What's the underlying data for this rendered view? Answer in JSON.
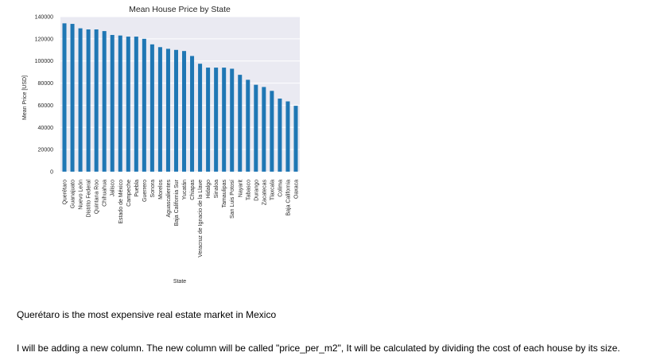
{
  "chart_data": {
    "type": "bar",
    "title": "Mean House Price by State",
    "xlabel": "State",
    "ylabel": "Mean Price [USD]",
    "ylim": [
      0,
      140000
    ],
    "yticks": [
      "0",
      "20000",
      "40000",
      "60000",
      "80000",
      "100000",
      "120000",
      "140000"
    ],
    "ytick_values": [
      0,
      20000,
      40000,
      60000,
      80000,
      100000,
      120000,
      140000
    ],
    "grid": true,
    "bar_color": "#1f77b4",
    "background_color": "#eaeaf2",
    "grid_color": "#ffffff",
    "categories": [
      "Querétaro",
      "Guanajuato",
      "Nuevo León",
      "Distrito Federal",
      "Quintana Roo",
      "Chihuahua",
      "Jalisco",
      "Estado de México",
      "Campeche",
      "Puebla",
      "Guerrero",
      "Sonora",
      "Morelos",
      "Aguascalientes",
      "Baja California Sur",
      "Yucatán",
      "Chiapas",
      "Veracruz de Ignacio de la Llave",
      "Hidalgo",
      "Sinaloa",
      "Tamaulipas",
      "San Luis Potosí",
      "Nayarit",
      "Tabasco",
      "Durango",
      "Zacatecas",
      "Tlaxcala",
      "Colima",
      "Baja California",
      "Oaxaca"
    ],
    "values": [
      134000,
      133500,
      129500,
      128500,
      128500,
      127000,
      123500,
      123000,
      122000,
      122000,
      120000,
      115000,
      112500,
      111000,
      110000,
      109000,
      104500,
      97500,
      94000,
      94000,
      94000,
      93000,
      87500,
      83000,
      78500,
      76500,
      73000,
      66000,
      63500,
      59500
    ]
  },
  "notes": {
    "line1": "Querétaro is the most expensive real estate market in Mexico",
    "line2": "I will be adding a new column. The new column will be called \"price_per_m2\", It will be calculated by dividing the cost of each house by its size."
  }
}
